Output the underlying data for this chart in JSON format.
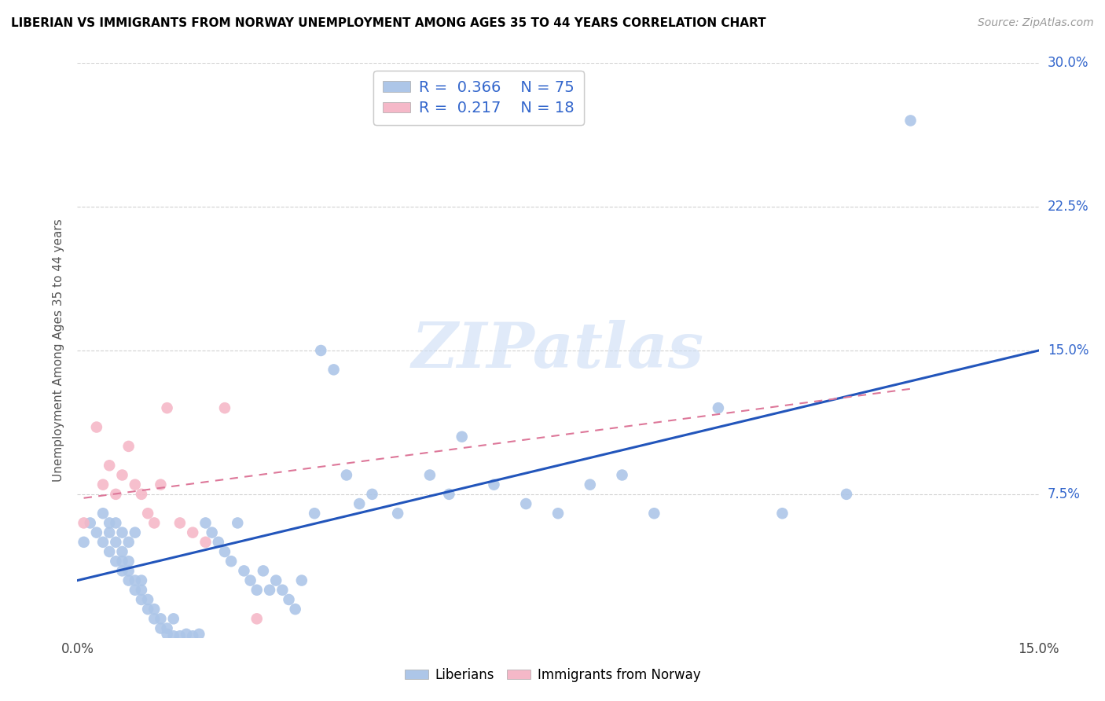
{
  "title": "LIBERIAN VS IMMIGRANTS FROM NORWAY UNEMPLOYMENT AMONG AGES 35 TO 44 YEARS CORRELATION CHART",
  "source": "Source: ZipAtlas.com",
  "ylabel": "Unemployment Among Ages 35 to 44 years",
  "xlim": [
    0,
    0.15
  ],
  "ylim": [
    0,
    0.3
  ],
  "liberian_color": "#adc6e8",
  "norway_color": "#f5b8c8",
  "liberian_line_color": "#2255bb",
  "norway_line_color": "#dd7799",
  "legend_R1": "0.366",
  "legend_N1": "75",
  "legend_R2": "0.217",
  "legend_N2": "18",
  "watermark": "ZIPatlas",
  "watermark_color": "#ccddf5",
  "liberian_x": [
    0.001,
    0.002,
    0.003,
    0.004,
    0.004,
    0.005,
    0.005,
    0.005,
    0.006,
    0.006,
    0.006,
    0.007,
    0.007,
    0.007,
    0.007,
    0.008,
    0.008,
    0.008,
    0.008,
    0.009,
    0.009,
    0.009,
    0.01,
    0.01,
    0.01,
    0.011,
    0.011,
    0.012,
    0.012,
    0.013,
    0.013,
    0.014,
    0.014,
    0.015,
    0.015,
    0.016,
    0.017,
    0.018,
    0.019,
    0.02,
    0.021,
    0.022,
    0.023,
    0.024,
    0.025,
    0.026,
    0.027,
    0.028,
    0.029,
    0.03,
    0.031,
    0.032,
    0.033,
    0.034,
    0.035,
    0.037,
    0.038,
    0.04,
    0.042,
    0.044,
    0.046,
    0.05,
    0.055,
    0.058,
    0.06,
    0.065,
    0.07,
    0.075,
    0.08,
    0.085,
    0.09,
    0.1,
    0.11,
    0.12,
    0.13
  ],
  "liberian_y": [
    0.05,
    0.06,
    0.055,
    0.05,
    0.065,
    0.045,
    0.055,
    0.06,
    0.04,
    0.05,
    0.06,
    0.035,
    0.04,
    0.045,
    0.055,
    0.03,
    0.035,
    0.04,
    0.05,
    0.025,
    0.03,
    0.055,
    0.02,
    0.025,
    0.03,
    0.015,
    0.02,
    0.01,
    0.015,
    0.005,
    0.01,
    0.005,
    0.002,
    0.001,
    0.01,
    0.001,
    0.002,
    0.001,
    0.002,
    0.06,
    0.055,
    0.05,
    0.045,
    0.04,
    0.06,
    0.035,
    0.03,
    0.025,
    0.035,
    0.025,
    0.03,
    0.025,
    0.02,
    0.015,
    0.03,
    0.065,
    0.15,
    0.14,
    0.085,
    0.07,
    0.075,
    0.065,
    0.085,
    0.075,
    0.105,
    0.08,
    0.07,
    0.065,
    0.08,
    0.085,
    0.065,
    0.12,
    0.065,
    0.075,
    0.27
  ],
  "norway_x": [
    0.001,
    0.003,
    0.004,
    0.005,
    0.006,
    0.007,
    0.008,
    0.009,
    0.01,
    0.011,
    0.012,
    0.013,
    0.014,
    0.016,
    0.018,
    0.02,
    0.023,
    0.028
  ],
  "norway_y": [
    0.06,
    0.11,
    0.08,
    0.09,
    0.075,
    0.085,
    0.1,
    0.08,
    0.075,
    0.065,
    0.06,
    0.08,
    0.12,
    0.06,
    0.055,
    0.05,
    0.12,
    0.01
  ],
  "liberian_trend_x": [
    0.0,
    0.15
  ],
  "liberian_trend_y": [
    0.03,
    0.15
  ],
  "norway_trend_x": [
    0.001,
    0.13
  ],
  "norway_trend_y": [
    0.073,
    0.13
  ]
}
